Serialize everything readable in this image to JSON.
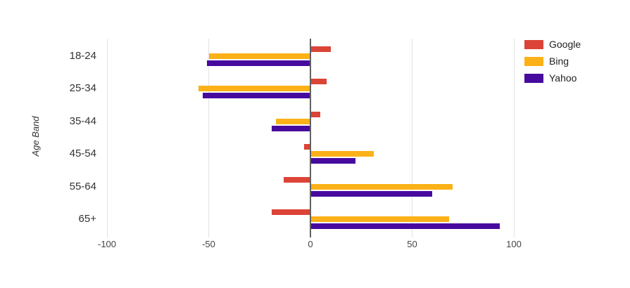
{
  "chart_data": {
    "type": "bar",
    "orientation": "horizontal",
    "title": "",
    "xlabel": "",
    "ylabel": "Age Band",
    "categories": [
      "18-24",
      "25-34",
      "35-44",
      "45-54",
      "55-64",
      "65+"
    ],
    "series": [
      {
        "name": "Google",
        "color": "#DB4437",
        "values": [
          10,
          8,
          5,
          -3,
          -13,
          -19
        ]
      },
      {
        "name": "Bing",
        "color": "#FBB117",
        "values": [
          -50,
          -55,
          -17,
          31,
          70,
          68
        ]
      },
      {
        "name": "Yahoo",
        "color": "#470A9E",
        "values": [
          -51,
          -53,
          -19,
          22,
          60,
          93
        ]
      }
    ],
    "x_ticks": [
      -100,
      -50,
      0,
      50,
      100
    ],
    "xlim": [
      -100,
      100
    ],
    "grid": true,
    "legend_position": "top-right",
    "colors": {
      "grid": "#e3e3e3",
      "zero_line": "#616161",
      "tick": "#b9b9b9",
      "category_label": "#333333",
      "tick_label": "#444444",
      "legend_label": "#222222",
      "background": "#ffffff"
    }
  }
}
